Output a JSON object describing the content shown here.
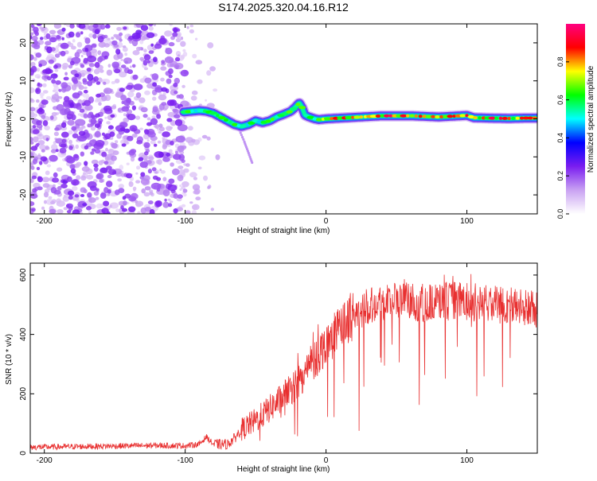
{
  "title": "S174.2025.320.04.16.R12",
  "chart_data": [
    {
      "type": "heatmap",
      "title": "S174.2025.320.04.16.R12",
      "xlabel": "Height of straight line (km)",
      "ylabel": "Frequency (Hz)",
      "xlim": [
        -210,
        150
      ],
      "ylim": [
        -25,
        25
      ],
      "x_ticks": [
        -200,
        -100,
        0,
        100
      ],
      "x_tick_labels": [
        "-200",
        "-100",
        "0",
        "100"
      ],
      "y_ticks": [
        -20,
        -10,
        0,
        10,
        20
      ],
      "y_tick_labels": [
        "-20",
        "-10",
        "0",
        "10",
        "20"
      ],
      "noise_region_km": [
        -210,
        -72
      ],
      "signal_trace": {
        "x": [
          -101,
          -95,
          -90,
          -85,
          -80,
          -75,
          -70,
          -65,
          -60,
          -55,
          -50,
          -45,
          -40,
          -35,
          -30,
          -25,
          -22,
          -19,
          -17,
          -15,
          -12,
          -8,
          -5,
          0,
          10,
          20,
          40,
          60,
          80,
          90,
          95,
          100,
          105,
          115,
          130,
          140,
          150
        ],
        "y": [
          1.8,
          2.0,
          2.2,
          2.0,
          1.5,
          0.5,
          -0.5,
          -1.5,
          -2.0,
          -1.5,
          -0.5,
          -1.0,
          -0.5,
          0.5,
          1.2,
          2.0,
          3.0,
          4.2,
          3.0,
          1.0,
          0.5,
          0.0,
          -0.2,
          0.0,
          0.2,
          0.4,
          0.8,
          0.8,
          0.5,
          0.7,
          0.8,
          0.9,
          0.3,
          0.2,
          0.1,
          0.2,
          0.2
        ]
      },
      "secondary_streak": {
        "x": [
          -62,
          -58,
          -55,
          -52
        ],
        "y": [
          -2.5,
          -6.0,
          -9.0,
          -12.0
        ]
      },
      "colorbar": {
        "label": "Normalized spectral amplitude",
        "range": [
          0,
          1
        ],
        "ticks": [
          0.0,
          0.2,
          0.4,
          0.6,
          0.8
        ],
        "tick_labels": [
          "0.0",
          "0.2",
          "0.4",
          "0.6",
          "0.8"
        ],
        "colors": [
          "#ffffff",
          "#c9a2f2",
          "#7a1df0",
          "#0000ff",
          "#00ffff",
          "#00ff00",
          "#ffff00",
          "#ff0000",
          "#ff0080"
        ]
      }
    },
    {
      "type": "line",
      "xlabel": "Height of straight line (km)",
      "ylabel": "SNR (10 * v/v)",
      "xlim": [
        -210,
        150
      ],
      "ylim": [
        0,
        640
      ],
      "x_ticks": [
        -200,
        -100,
        0,
        100
      ],
      "x_tick_labels": [
        "-200",
        "-100",
        "0",
        "100"
      ],
      "y_ticks": [
        0,
        200,
        400,
        600
      ],
      "y_tick_labels": [
        "0",
        "200",
        "400",
        "600"
      ],
      "color": "#e83030",
      "series": [
        {
          "name": "SNR",
          "x": [
            -210,
            -180,
            -150,
            -120,
            -100,
            -90,
            -85,
            -80,
            -75,
            -70,
            -65,
            -60,
            -50,
            -40,
            -30,
            -20,
            -10,
            0,
            10,
            20,
            30,
            40,
            50,
            60,
            70,
            80,
            90,
            100,
            110,
            120,
            130,
            140,
            150
          ],
          "y": [
            20,
            22,
            24,
            26,
            25,
            30,
            55,
            30,
            30,
            30,
            50,
            80,
            110,
            150,
            190,
            240,
            300,
            370,
            420,
            470,
            500,
            510,
            515,
            510,
            505,
            510,
            515,
            510,
            505,
            500,
            500,
            490,
            480
          ]
        }
      ]
    }
  ]
}
